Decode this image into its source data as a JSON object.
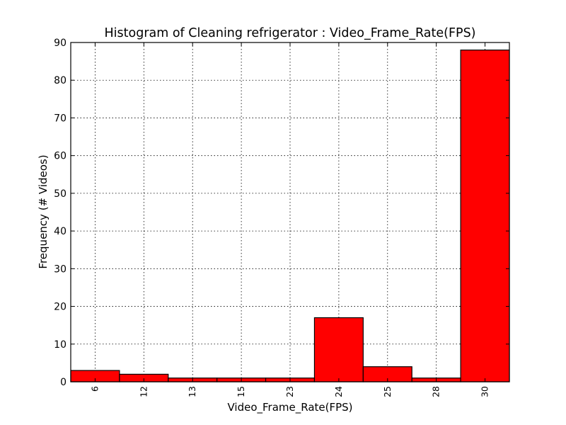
{
  "chart_data": {
    "type": "bar",
    "title": "Histogram of Cleaning refrigerator : Video_Frame_Rate(FPS)",
    "xlabel": "Video_Frame_Rate(FPS)",
    "ylabel": "Frequency (# Videos)",
    "categories": [
      "6",
      "12",
      "13",
      "15",
      "23",
      "24",
      "25",
      "28",
      "30"
    ],
    "values": [
      3,
      2,
      1,
      1,
      1,
      17,
      4,
      1,
      88
    ],
    "ylim": [
      0,
      90
    ],
    "yticks": [
      "0",
      "10",
      "20",
      "30",
      "40",
      "50",
      "60",
      "70",
      "80",
      "90"
    ],
    "bar_color": "#ff0000",
    "grid": true,
    "xtick_rotation": "vertical"
  }
}
